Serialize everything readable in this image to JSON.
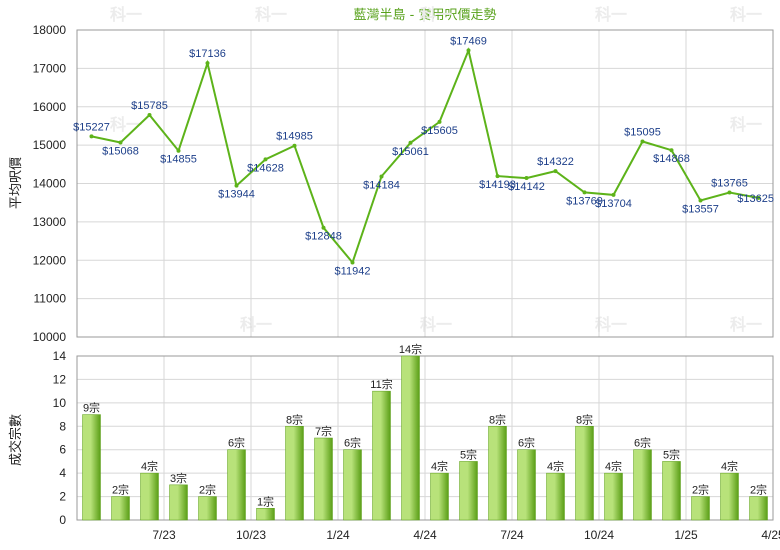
{
  "title": "藍灣半島 - 實用呎價走勢",
  "watermark": "科一",
  "colors": {
    "line": "#5db31a",
    "point": "#5db31a",
    "bar_light": "#b8e27a",
    "bar_dark": "#5a9e16",
    "title": "#58a21c",
    "value_label": "#1d3f8a"
  },
  "chart_data": [
    {
      "type": "line",
      "ylabel": "平均呎價",
      "ylim": [
        10000,
        18000
      ],
      "yticks": [
        10000,
        11000,
        12000,
        13000,
        14000,
        15000,
        16000,
        17000,
        18000
      ],
      "grid": true,
      "values": [
        15227,
        15068,
        15785,
        14855,
        17136,
        13944,
        14628,
        14985,
        12848,
        11942,
        14184,
        15061,
        15605,
        17469,
        14193,
        14142,
        14322,
        13769,
        13704,
        15095,
        14868,
        13557,
        13765,
        13625
      ],
      "labels": [
        "$15227",
        "$15068",
        "$15785",
        "$14855",
        "$17136",
        "$13944",
        "$14628",
        "$14985",
        "$12848",
        "$11942",
        "$14184",
        "$15061",
        "$15605",
        "$17469",
        "$14193",
        "$14142",
        "$14322",
        "$13769",
        "$13704",
        "$15095",
        "$14868",
        "$13557",
        "$13765",
        "$13625"
      ]
    },
    {
      "type": "bar",
      "ylabel": "成交宗數",
      "ylim": [
        0,
        14
      ],
      "yticks": [
        0,
        2,
        4,
        6,
        8,
        10,
        12,
        14
      ],
      "grid": true,
      "values": [
        9,
        2,
        4,
        3,
        2,
        6,
        1,
        8,
        7,
        6,
        11,
        14,
        4,
        5,
        8,
        6,
        4,
        8,
        4,
        6,
        5,
        2,
        4,
        2
      ],
      "labels": [
        "9宗",
        "2宗",
        "4宗",
        "3宗",
        "2宗",
        "6宗",
        "1宗",
        "8宗",
        "7宗",
        "6宗",
        "11宗",
        "14宗",
        "4宗",
        "5宗",
        "8宗",
        "6宗",
        "4宗",
        "8宗",
        "4宗",
        "6宗",
        "5宗",
        "2宗",
        "4宗",
        "2宗"
      ],
      "categories": [
        "",
        "",
        "7/23",
        "",
        "",
        "10/23",
        "",
        "",
        "1/24",
        "",
        "",
        "4/24",
        "",
        "",
        "7/24",
        "",
        "",
        "10/24",
        "",
        "",
        "1/25",
        "",
        "",
        "4/25"
      ]
    }
  ]
}
